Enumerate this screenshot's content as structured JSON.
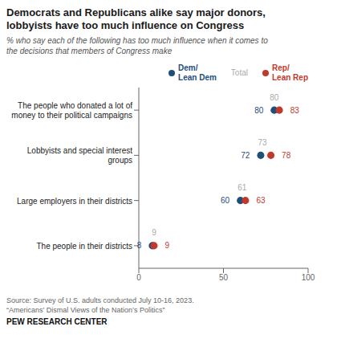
{
  "chart_data": {
    "type": "dot",
    "orientation": "horizontal",
    "title": "Democrats and Republicans alike say major donors,\nlobbyists have too much influence on Congress",
    "subtitle": "% who say each of the following has too much influence when it comes to\nthe decisions that members of Congress make",
    "annotations": [
      "Source: Survey of U.S. adults conducted July 10-16, 2023.",
      "“Americans’ Dismal Views of the Nation’s Politics”",
      "PEW RESEARCH CENTER"
    ],
    "categories": [
      "The people in their districts",
      "Large employers in their districts",
      "Lobbyists and special interest\ngroups",
      "The people who donated a lot of\nmoney to their political campaigns"
    ],
    "series": [
      {
        "name": "Dem/\nLean Dem",
        "color": "#1f4e79",
        "marker": "circle",
        "values": [
          8,
          60,
          72,
          80
        ]
      },
      {
        "name": "Total",
        "color": "#aaaaaa",
        "marker": "none",
        "values": [
          9,
          61,
          73,
          80
        ]
      },
      {
        "name": "Rep/\nLean Rep",
        "color": "#c0392b",
        "marker": "circle",
        "values": [
          9,
          63,
          78,
          83
        ]
      }
    ],
    "xlim": [
      0,
      100
    ],
    "xticks": [
      0,
      50,
      100
    ],
    "grid": false,
    "legend": "top",
    "data_labels": true
  }
}
